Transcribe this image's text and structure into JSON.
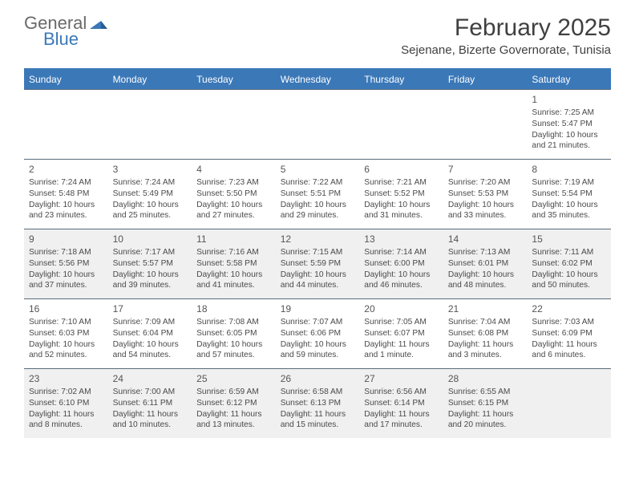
{
  "brand": {
    "word1": "General",
    "word2": "Blue",
    "accent_color": "#3b78b8"
  },
  "title": "February 2025",
  "location": "Sejenane, Bizerte Governorate, Tunisia",
  "colors": {
    "header_bg": "#3b78b8",
    "header_text": "#ffffff",
    "week_border": "#5a6b7a",
    "shaded_cell": "#f0f0f0",
    "page_bg": "#ffffff",
    "body_text": "#4a4a4a"
  },
  "day_headers": [
    "Sunday",
    "Monday",
    "Tuesday",
    "Wednesday",
    "Thursday",
    "Friday",
    "Saturday"
  ],
  "weeks": [
    [
      null,
      null,
      null,
      null,
      null,
      null,
      {
        "n": "1",
        "sr": "Sunrise: 7:25 AM",
        "ss": "Sunset: 5:47 PM",
        "dl": "Daylight: 10 hours and 21 minutes."
      }
    ],
    [
      {
        "n": "2",
        "sr": "Sunrise: 7:24 AM",
        "ss": "Sunset: 5:48 PM",
        "dl": "Daylight: 10 hours and 23 minutes."
      },
      {
        "n": "3",
        "sr": "Sunrise: 7:24 AM",
        "ss": "Sunset: 5:49 PM",
        "dl": "Daylight: 10 hours and 25 minutes."
      },
      {
        "n": "4",
        "sr": "Sunrise: 7:23 AM",
        "ss": "Sunset: 5:50 PM",
        "dl": "Daylight: 10 hours and 27 minutes."
      },
      {
        "n": "5",
        "sr": "Sunrise: 7:22 AM",
        "ss": "Sunset: 5:51 PM",
        "dl": "Daylight: 10 hours and 29 minutes."
      },
      {
        "n": "6",
        "sr": "Sunrise: 7:21 AM",
        "ss": "Sunset: 5:52 PM",
        "dl": "Daylight: 10 hours and 31 minutes."
      },
      {
        "n": "7",
        "sr": "Sunrise: 7:20 AM",
        "ss": "Sunset: 5:53 PM",
        "dl": "Daylight: 10 hours and 33 minutes."
      },
      {
        "n": "8",
        "sr": "Sunrise: 7:19 AM",
        "ss": "Sunset: 5:54 PM",
        "dl": "Daylight: 10 hours and 35 minutes."
      }
    ],
    [
      {
        "n": "9",
        "sr": "Sunrise: 7:18 AM",
        "ss": "Sunset: 5:56 PM",
        "dl": "Daylight: 10 hours and 37 minutes."
      },
      {
        "n": "10",
        "sr": "Sunrise: 7:17 AM",
        "ss": "Sunset: 5:57 PM",
        "dl": "Daylight: 10 hours and 39 minutes."
      },
      {
        "n": "11",
        "sr": "Sunrise: 7:16 AM",
        "ss": "Sunset: 5:58 PM",
        "dl": "Daylight: 10 hours and 41 minutes."
      },
      {
        "n": "12",
        "sr": "Sunrise: 7:15 AM",
        "ss": "Sunset: 5:59 PM",
        "dl": "Daylight: 10 hours and 44 minutes."
      },
      {
        "n": "13",
        "sr": "Sunrise: 7:14 AM",
        "ss": "Sunset: 6:00 PM",
        "dl": "Daylight: 10 hours and 46 minutes."
      },
      {
        "n": "14",
        "sr": "Sunrise: 7:13 AM",
        "ss": "Sunset: 6:01 PM",
        "dl": "Daylight: 10 hours and 48 minutes."
      },
      {
        "n": "15",
        "sr": "Sunrise: 7:11 AM",
        "ss": "Sunset: 6:02 PM",
        "dl": "Daylight: 10 hours and 50 minutes."
      }
    ],
    [
      {
        "n": "16",
        "sr": "Sunrise: 7:10 AM",
        "ss": "Sunset: 6:03 PM",
        "dl": "Daylight: 10 hours and 52 minutes."
      },
      {
        "n": "17",
        "sr": "Sunrise: 7:09 AM",
        "ss": "Sunset: 6:04 PM",
        "dl": "Daylight: 10 hours and 54 minutes."
      },
      {
        "n": "18",
        "sr": "Sunrise: 7:08 AM",
        "ss": "Sunset: 6:05 PM",
        "dl": "Daylight: 10 hours and 57 minutes."
      },
      {
        "n": "19",
        "sr": "Sunrise: 7:07 AM",
        "ss": "Sunset: 6:06 PM",
        "dl": "Daylight: 10 hours and 59 minutes."
      },
      {
        "n": "20",
        "sr": "Sunrise: 7:05 AM",
        "ss": "Sunset: 6:07 PM",
        "dl": "Daylight: 11 hours and 1 minute."
      },
      {
        "n": "21",
        "sr": "Sunrise: 7:04 AM",
        "ss": "Sunset: 6:08 PM",
        "dl": "Daylight: 11 hours and 3 minutes."
      },
      {
        "n": "22",
        "sr": "Sunrise: 7:03 AM",
        "ss": "Sunset: 6:09 PM",
        "dl": "Daylight: 11 hours and 6 minutes."
      }
    ],
    [
      {
        "n": "23",
        "sr": "Sunrise: 7:02 AM",
        "ss": "Sunset: 6:10 PM",
        "dl": "Daylight: 11 hours and 8 minutes."
      },
      {
        "n": "24",
        "sr": "Sunrise: 7:00 AM",
        "ss": "Sunset: 6:11 PM",
        "dl": "Daylight: 11 hours and 10 minutes."
      },
      {
        "n": "25",
        "sr": "Sunrise: 6:59 AM",
        "ss": "Sunset: 6:12 PM",
        "dl": "Daylight: 11 hours and 13 minutes."
      },
      {
        "n": "26",
        "sr": "Sunrise: 6:58 AM",
        "ss": "Sunset: 6:13 PM",
        "dl": "Daylight: 11 hours and 15 minutes."
      },
      {
        "n": "27",
        "sr": "Sunrise: 6:56 AM",
        "ss": "Sunset: 6:14 PM",
        "dl": "Daylight: 11 hours and 17 minutes."
      },
      {
        "n": "28",
        "sr": "Sunrise: 6:55 AM",
        "ss": "Sunset: 6:15 PM",
        "dl": "Daylight: 11 hours and 20 minutes."
      },
      null
    ]
  ],
  "shaded_rows": [
    2,
    4
  ]
}
